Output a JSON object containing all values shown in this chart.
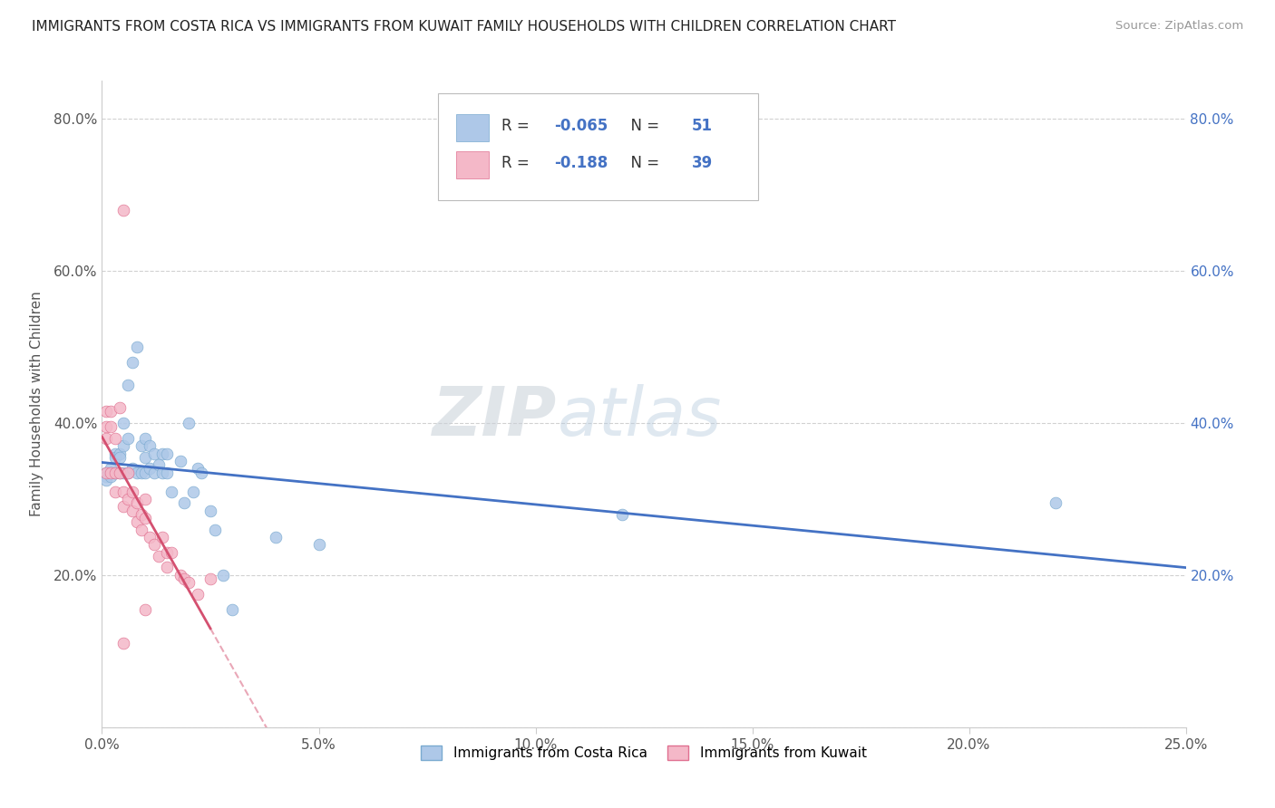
{
  "title": "IMMIGRANTS FROM COSTA RICA VS IMMIGRANTS FROM KUWAIT FAMILY HOUSEHOLDS WITH CHILDREN CORRELATION CHART",
  "source": "Source: ZipAtlas.com",
  "ylabel": "Family Households with Children",
  "series": [
    {
      "name": "Immigrants from Costa Rica",
      "color": "#aec8e8",
      "edge_color": "#7aaad0",
      "R": -0.065,
      "N": 51,
      "line_color": "#4472c4",
      "line_style": "solid",
      "x": [
        0.001,
        0.001,
        0.001,
        0.002,
        0.002,
        0.002,
        0.003,
        0.003,
        0.003,
        0.004,
        0.004,
        0.004,
        0.005,
        0.005,
        0.005,
        0.006,
        0.006,
        0.006,
        0.007,
        0.007,
        0.008,
        0.008,
        0.009,
        0.009,
        0.01,
        0.01,
        0.01,
        0.011,
        0.011,
        0.012,
        0.012,
        0.013,
        0.014,
        0.014,
        0.015,
        0.015,
        0.016,
        0.018,
        0.019,
        0.02,
        0.021,
        0.022,
        0.023,
        0.025,
        0.026,
        0.028,
        0.03,
        0.04,
        0.05,
        0.12,
        0.22
      ],
      "y": [
        0.335,
        0.33,
        0.325,
        0.34,
        0.335,
        0.33,
        0.36,
        0.355,
        0.335,
        0.36,
        0.355,
        0.335,
        0.4,
        0.37,
        0.335,
        0.45,
        0.38,
        0.335,
        0.48,
        0.34,
        0.5,
        0.335,
        0.37,
        0.335,
        0.38,
        0.355,
        0.335,
        0.37,
        0.34,
        0.36,
        0.335,
        0.345,
        0.36,
        0.335,
        0.36,
        0.335,
        0.31,
        0.35,
        0.295,
        0.4,
        0.31,
        0.34,
        0.335,
        0.285,
        0.26,
        0.2,
        0.155,
        0.25,
        0.24,
        0.28,
        0.295
      ]
    },
    {
      "name": "Immigrants from Kuwait",
      "color": "#f4b8c8",
      "edge_color": "#e07090",
      "R": -0.188,
      "N": 39,
      "line_color": "#d45070",
      "line_style": "solid_then_dashed",
      "x_max_data": 0.025,
      "x": [
        0.001,
        0.001,
        0.001,
        0.001,
        0.002,
        0.002,
        0.002,
        0.003,
        0.003,
        0.003,
        0.004,
        0.004,
        0.005,
        0.005,
        0.005,
        0.006,
        0.006,
        0.007,
        0.007,
        0.008,
        0.008,
        0.009,
        0.009,
        0.01,
        0.01,
        0.011,
        0.012,
        0.013,
        0.014,
        0.015,
        0.015,
        0.016,
        0.018,
        0.019,
        0.02,
        0.022,
        0.025,
        0.01,
        0.005
      ],
      "y": [
        0.415,
        0.395,
        0.38,
        0.335,
        0.415,
        0.395,
        0.335,
        0.38,
        0.335,
        0.31,
        0.42,
        0.335,
        0.68,
        0.31,
        0.29,
        0.335,
        0.3,
        0.31,
        0.285,
        0.295,
        0.27,
        0.28,
        0.26,
        0.3,
        0.275,
        0.25,
        0.24,
        0.225,
        0.25,
        0.23,
        0.21,
        0.23,
        0.2,
        0.195,
        0.19,
        0.175,
        0.195,
        0.155,
        0.11
      ]
    }
  ],
  "xlim": [
    0,
    0.25
  ],
  "ylim": [
    0,
    0.85
  ],
  "xticks": [
    0.0,
    0.05,
    0.1,
    0.15,
    0.2,
    0.25
  ],
  "xtick_labels": [
    "0.0%",
    "5.0%",
    "10.0%",
    "15.0%",
    "20.0%",
    "25.0%"
  ],
  "yticks": [
    0.0,
    0.2,
    0.4,
    0.6,
    0.8
  ],
  "ytick_labels": [
    "",
    "20.0%",
    "40.0%",
    "60.0%",
    "80.0%"
  ],
  "grid_color": "#cccccc",
  "background_color": "#ffffff",
  "right_ytick_color": "#4472c4",
  "marker_size": 85,
  "legend_color": "#4472c4",
  "watermark_color": "#d0dff0"
}
